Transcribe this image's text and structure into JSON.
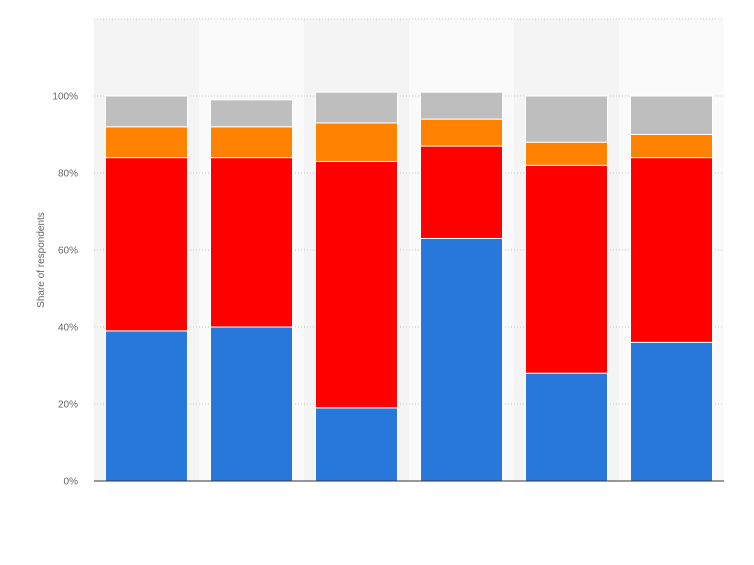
{
  "chart_data": {
    "type": "bar",
    "stacked": true,
    "title": "",
    "xlabel": "",
    "ylabel": "Share of respondents",
    "ylim": [
      0,
      120
    ],
    "y_ticks": [
      0,
      20,
      40,
      60,
      80,
      100
    ],
    "y_tick_labels": [
      "0%",
      "20%",
      "40%",
      "60%",
      "80%",
      "100%"
    ],
    "grid": true,
    "legend": "none",
    "categories": [
      "",
      "",
      "",
      "",
      "",
      ""
    ],
    "series": [
      {
        "color": "#2878dc",
        "values": [
          39,
          40,
          19,
          63,
          28,
          36
        ]
      },
      {
        "color": "#ff0000",
        "values": [
          45,
          44,
          64,
          24,
          54,
          48
        ]
      },
      {
        "color": "#ff8200",
        "values": [
          8,
          8,
          10,
          7,
          6,
          6
        ]
      },
      {
        "color": "#bebebe",
        "values": [
          8,
          7,
          8,
          7,
          12,
          10
        ]
      }
    ]
  }
}
